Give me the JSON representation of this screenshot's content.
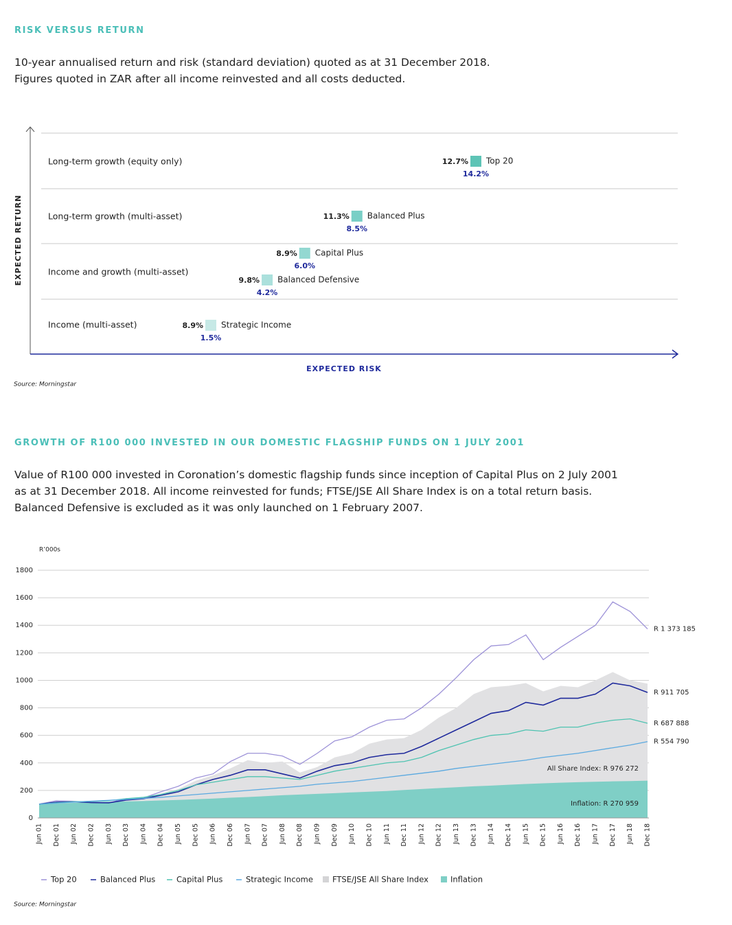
{
  "header": {
    "title": "RISK VERSUS RETURN",
    "lines": [
      "10-year annualised return and risk (standard deviation) quoted as at 31 December 2018.",
      "Figures quoted in ZAR after all income reinvested and all costs deducted."
    ]
  },
  "section2": {
    "title": "GROWTH OF R100 000 INVESTED IN OUR DOMESTIC FLAGSHIP FUNDS ON 1 JULY 2001",
    "text": "Value of R100 000 invested in Coronation’s domestic flagship funds since inception of Capital Plus on 2 July 2001 as at 31 December 2018. All income reinvested for funds; FTSE/JSE All Share Index is on a total return basis. Balanced Defensive is excluded as it was only launched on 1 February 2007."
  },
  "chart_data": [
    {
      "type": "risk-return",
      "y_axis_label": "EXPECTED RETURN",
      "x_axis_label": "EXPECTED RISK",
      "source": "Source: Morningstar",
      "rows": [
        {
          "label": "Long-term growth (equity only)",
          "series": [
            {
              "name": "Top 20",
              "color": "#5ec4b6",
              "values": [
                12.7
              ],
              "value_labels": [
                "12.7%"
              ],
              "x": [
                14.2
              ],
              "x_labels": [
                "14.2%"
              ]
            }
          ]
        },
        {
          "label": "Long-term growth (multi-asset)",
          "series": [
            {
              "name": "Balanced Plus",
              "color": "#79cfc6",
              "values": [
                11.3
              ],
              "value_labels": [
                "11.3%"
              ],
              "x": [
                8.5
              ],
              "x_labels": [
                "8.5%"
              ]
            }
          ]
        },
        {
          "label": "Income and growth (multi-asset)",
          "series": [
            {
              "name": "Capital Plus",
              "color": "#93d8d1",
              "values": [
                8.9
              ],
              "value_labels": [
                "8.9%"
              ],
              "x": [
                6.0
              ],
              "x_labels": [
                "6.0%"
              ]
            },
            {
              "name": "Balanced Defensive",
              "color": "#abe0dc",
              "values": [
                9.8
              ],
              "value_labels": [
                "9.8%"
              ],
              "x": [
                4.2
              ],
              "x_labels": [
                "4.2%"
              ]
            }
          ]
        },
        {
          "label": "Income (multi-asset)",
          "series": [
            {
              "name": "Strategic Income",
              "color": "#c6e9e6",
              "values": [
                8.9
              ],
              "value_labels": [
                "8.9%"
              ],
              "x": [
                1.5
              ],
              "x_labels": [
                "1.5%"
              ]
            }
          ]
        }
      ]
    },
    {
      "type": "line",
      "y_unit": "R’000s",
      "source": "Source: Morningstar",
      "ylim": [
        0,
        1800
      ],
      "yticks": [
        0,
        200,
        400,
        600,
        800,
        1000,
        1200,
        1400,
        1600,
        1800
      ],
      "grid": true,
      "categories": [
        "Jun 01",
        "Dec 01",
        "Jun 02",
        "Dec 02",
        "Jun 03",
        "Dec 03",
        "Jun 04",
        "Dec 04",
        "Jun 05",
        "Dec 05",
        "Jun 06",
        "Dec 06",
        "Jun 07",
        "Dec 07",
        "Jun 08",
        "Dec 08",
        "Jun 09",
        "Dec 09",
        "Jun 10",
        "Dec 10",
        "Jun 11",
        "Dec 11",
        "Jun 12",
        "Dec 12",
        "Jun 13",
        "Dec 13",
        "Jun 14",
        "Dec 14",
        "Jun 15",
        "Dec 15",
        "Jun 16",
        "Dec 16",
        "Jun 17",
        "Dec 17",
        "Jun 18",
        "Dec 18"
      ],
      "series": [
        {
          "name": "FTSE/JSE All Share Index",
          "kind": "area",
          "color": "#e1e1e3",
          "values": [
            100,
            115,
            115,
            110,
            105,
            135,
            140,
            180,
            210,
            270,
            310,
            360,
            420,
            400,
            410,
            330,
            370,
            440,
            470,
            540,
            570,
            580,
            640,
            730,
            800,
            900,
            950,
            960,
            980,
            920,
            960,
            950,
            1000,
            1060,
            1000,
            976.272
          ],
          "value_labels": [
            null,
            null,
            null,
            null,
            null,
            null,
            null,
            null,
            null,
            null,
            null,
            null,
            null,
            null,
            null,
            null,
            null,
            null,
            null,
            null,
            null,
            null,
            null,
            null,
            null,
            null,
            null,
            null,
            null,
            null,
            null,
            null,
            null,
            null,
            null,
            "All Share Index: R 976 272"
          ]
        },
        {
          "name": "Inflation",
          "kind": "area",
          "color": "#7fcfc6",
          "values": [
            100,
            105,
            110,
            115,
            118,
            120,
            123,
            127,
            131,
            136,
            141,
            147,
            152,
            158,
            165,
            170,
            175,
            180,
            186,
            191,
            196,
            203,
            210,
            217,
            223,
            230,
            235,
            241,
            247,
            252,
            256,
            260,
            263,
            266,
            268,
            270.959
          ],
          "value_labels": [
            null,
            null,
            null,
            null,
            null,
            null,
            null,
            null,
            null,
            null,
            null,
            null,
            null,
            null,
            null,
            null,
            null,
            null,
            null,
            null,
            null,
            null,
            null,
            null,
            null,
            null,
            null,
            null,
            null,
            null,
            null,
            null,
            null,
            null,
            null,
            "Inflation: R 270 959"
          ]
        },
        {
          "name": "Top 20",
          "kind": "line",
          "color": "#9d92d8",
          "values": [
            100,
            125,
            120,
            115,
            110,
            140,
            145,
            190,
            230,
            290,
            320,
            410,
            470,
            470,
            450,
            390,
            470,
            560,
            590,
            660,
            710,
            720,
            800,
            900,
            1020,
            1150,
            1250,
            1260,
            1330,
            1150,
            1240,
            1320,
            1400,
            1570,
            1500,
            1373.185
          ],
          "value_labels": [
            null,
            null,
            null,
            null,
            null,
            null,
            null,
            null,
            null,
            null,
            null,
            null,
            null,
            null,
            null,
            null,
            null,
            null,
            null,
            null,
            null,
            null,
            null,
            null,
            null,
            null,
            null,
            null,
            null,
            null,
            null,
            null,
            null,
            null,
            null,
            "R 1 373 185"
          ]
        },
        {
          "name": "Balanced Plus",
          "kind": "line",
          "color": "#1f2a9c",
          "values": [
            100,
            115,
            118,
            112,
            110,
            130,
            140,
            165,
            190,
            240,
            280,
            310,
            350,
            350,
            320,
            290,
            340,
            380,
            400,
            440,
            460,
            470,
            520,
            580,
            640,
            700,
            760,
            780,
            840,
            820,
            870,
            870,
            900,
            980,
            960,
            911.705
          ],
          "value_labels": [
            null,
            null,
            null,
            null,
            null,
            null,
            null,
            null,
            null,
            null,
            null,
            null,
            null,
            null,
            null,
            null,
            null,
            null,
            null,
            null,
            null,
            null,
            null,
            null,
            null,
            null,
            null,
            null,
            null,
            null,
            null,
            null,
            null,
            null,
            null,
            "R 911 705"
          ]
        },
        {
          "name": "Capital Plus",
          "kind": "line",
          "color": "#4ec3b1",
          "values": [
            100,
            110,
            118,
            120,
            125,
            140,
            150,
            170,
            200,
            240,
            260,
            280,
            300,
            300,
            290,
            280,
            310,
            340,
            360,
            380,
            400,
            410,
            440,
            490,
            530,
            570,
            600,
            610,
            640,
            630,
            660,
            660,
            690,
            710,
            720,
            687.888
          ],
          "value_labels": [
            null,
            null,
            null,
            null,
            null,
            null,
            null,
            null,
            null,
            null,
            null,
            null,
            null,
            null,
            null,
            null,
            null,
            null,
            null,
            null,
            null,
            null,
            null,
            null,
            null,
            null,
            null,
            null,
            null,
            null,
            null,
            null,
            null,
            null,
            null,
            "R 687 888"
          ]
        },
        {
          "name": "Strategic Income",
          "kind": "line",
          "color": "#5aa9e0",
          "values": [
            100,
            108,
            115,
            122,
            128,
            135,
            142,
            150,
            160,
            170,
            180,
            190,
            200,
            210,
            220,
            230,
            245,
            255,
            265,
            280,
            295,
            310,
            325,
            340,
            360,
            375,
            390,
            405,
            420,
            440,
            455,
            470,
            490,
            510,
            530,
            554.79
          ],
          "value_labels": [
            null,
            null,
            null,
            null,
            null,
            null,
            null,
            null,
            null,
            null,
            null,
            null,
            null,
            null,
            null,
            null,
            null,
            null,
            null,
            null,
            null,
            null,
            null,
            null,
            null,
            null,
            null,
            null,
            null,
            null,
            null,
            null,
            null,
            null,
            null,
            "R 554 790"
          ]
        }
      ]
    }
  ]
}
